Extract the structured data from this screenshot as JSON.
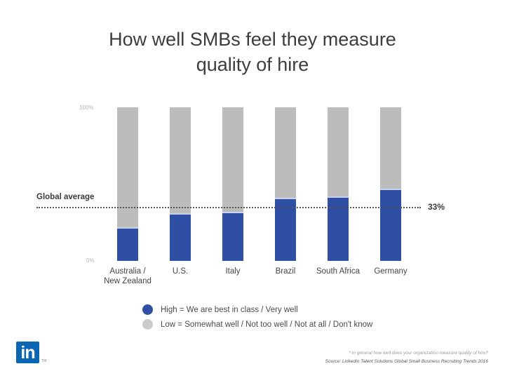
{
  "title_line1": "How well SMBs feel they measure",
  "title_line2": "quality of hire",
  "axis": {
    "top_label": "100%",
    "bottom_label": "0%"
  },
  "global_average": {
    "label": "Global average",
    "value_label": "33%",
    "value": 33
  },
  "legend": {
    "high": {
      "label": "High = We are best in class / Very well",
      "color": "#2e4fa3"
    },
    "low": {
      "label": "Low = Somewhat well / Not too well / Not at all / Don't know",
      "color": "#bcbcbc"
    }
  },
  "categories": [
    {
      "line1": "Australia /",
      "line2": "New Zealand"
    },
    {
      "line1": "U.S.",
      "line2": ""
    },
    {
      "line1": "Italy",
      "line2": ""
    },
    {
      "line1": "Brazil",
      "line2": ""
    },
    {
      "line1": "South Africa",
      "line2": ""
    },
    {
      "line1": "Germany",
      "line2": ""
    }
  ],
  "footer": {
    "logo_text": "in",
    "logo_tm": "TM",
    "footnote": "* In general how well does your organization measure quality of hire?",
    "source": "Source: LinkedIn Talent Solutions Global Small Business Recruiting Trends 2016"
  },
  "chart_data": {
    "type": "bar",
    "stacked": true,
    "title": "How well SMBs feel they measure quality of hire",
    "categories": [
      "Australia / New Zealand",
      "U.S.",
      "Italy",
      "Brazil",
      "South Africa",
      "Germany"
    ],
    "series": [
      {
        "name": "High = We are best in class / Very well",
        "color": "#2e4fa3",
        "values": [
          21,
          30,
          31,
          40,
          41,
          46
        ]
      },
      {
        "name": "Low = Somewhat well / Not too well / Not at all / Don't know",
        "color": "#bcbcbc",
        "values": [
          79,
          70,
          69,
          60,
          59,
          54
        ]
      }
    ],
    "reference_line": {
      "label": "Global average",
      "value": 33
    },
    "xlabel": "",
    "ylabel": "",
    "ylim": [
      0,
      100
    ],
    "ytick_labels": [
      "0%",
      "100%"
    ],
    "grid": false,
    "legend_position": "bottom"
  }
}
